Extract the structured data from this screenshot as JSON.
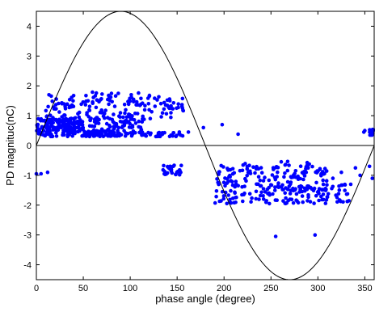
{
  "chart_data": {
    "type": "scatter",
    "title": "",
    "xlabel": "phase angle (degree)",
    "ylabel": "PD magnituc(nC)",
    "xlim": [
      0,
      360
    ],
    "ylim": [
      -4.5,
      4.5
    ],
    "xticks": [
      "0",
      "50",
      "100",
      "150",
      "200",
      "250",
      "300",
      "350"
    ],
    "yticks": [
      "4",
      "3",
      "2",
      "1",
      "0",
      "-1",
      "-2",
      "-3",
      "-4"
    ],
    "grid": false,
    "legend": "none",
    "colors": {
      "points": "#0000ff",
      "curve": "#000000",
      "axes": "#000000"
    },
    "reference_curve": {
      "name": "",
      "type": "sine",
      "amplitude": 4.5,
      "period_degrees": 360
    },
    "reference_line": {
      "y": 0
    },
    "series": [
      {
        "name": "",
        "clusters": [
          {
            "x_range": [
              0,
              50
            ],
            "y_range": [
              0.3,
              0.9
            ],
            "count": 170
          },
          {
            "x_range": [
              50,
              90
            ],
            "y_range": [
              0.3,
              0.5
            ],
            "count": 70
          },
          {
            "x_range": [
              90,
              160
            ],
            "y_range": [
              0.3,
              0.45
            ],
            "count": 40
          },
          {
            "x_range": [
              10,
              110
            ],
            "y_range": [
              0.6,
              1.8
            ],
            "count": 150
          },
          {
            "x_range": [
              60,
              115
            ],
            "y_range": [
              0.45,
              1.0
            ],
            "count": 45
          },
          {
            "x_range": [
              110,
              160
            ],
            "y_range": [
              0.9,
              1.7
            ],
            "count": 45
          },
          {
            "x_range": [
              135,
              155
            ],
            "y_range": [
              -1.0,
              -0.65
            ],
            "count": 28
          },
          {
            "x_range": [
              190,
              310
            ],
            "y_range": [
              -1.95,
              -0.6
            ],
            "count": 230
          },
          {
            "x_range": [
              300,
              335
            ],
            "y_range": [
              -1.9,
              -1.3
            ],
            "count": 30
          },
          {
            "x_range": [
              250,
              290
            ],
            "y_range": [
              -1.5,
              -0.5
            ],
            "count": 20
          },
          {
            "x_range": [
              355,
              360
            ],
            "y_range": [
              0.35,
              0.55
            ],
            "count": 14
          }
        ],
        "points": [
          [
            0,
            -0.95
          ],
          [
            5,
            -0.95
          ],
          [
            12,
            -0.9
          ],
          [
            198,
            0.7
          ],
          [
            215,
            0.38
          ],
          [
            162,
            0.45
          ],
          [
            178,
            0.6
          ],
          [
            340,
            -0.75
          ],
          [
            345,
            -1.0
          ],
          [
            355,
            -0.7
          ],
          [
            358,
            -1.1
          ],
          [
            335,
            -1.3
          ],
          [
            325,
            -0.9
          ],
          [
            316,
            -1.1
          ],
          [
            297,
            -3.0
          ],
          [
            255,
            -3.05
          ],
          [
            350,
            0.5
          ],
          [
            349,
            0.45
          ]
        ]
      }
    ]
  }
}
